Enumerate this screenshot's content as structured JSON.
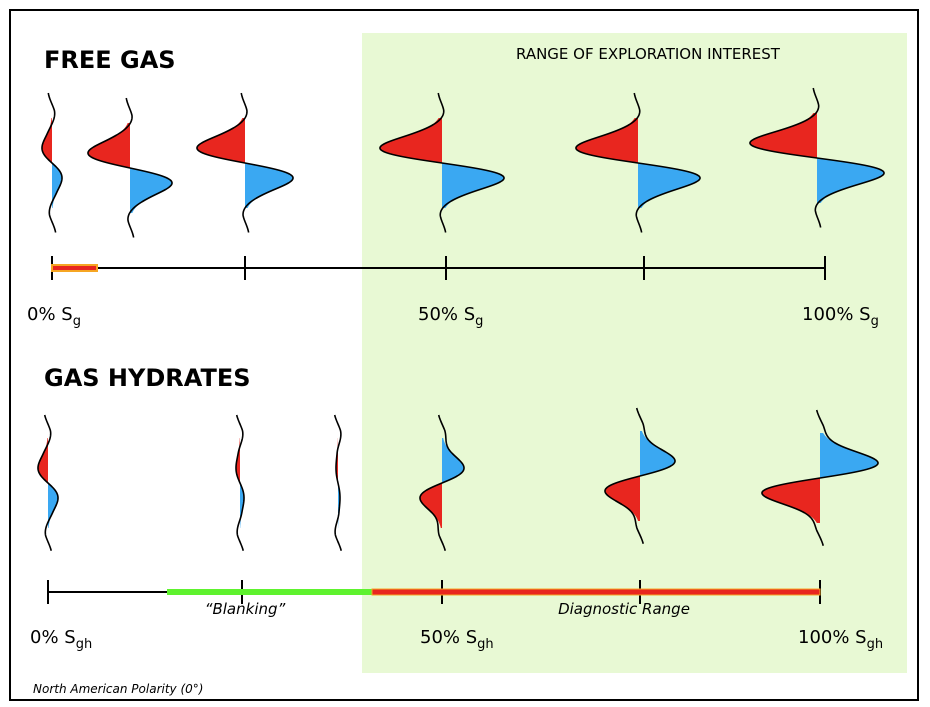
{
  "free_gas": {
    "title": "FREE GAS",
    "axis_labels": [
      {
        "text": "0% S",
        "sub": "g"
      },
      {
        "text": "50% S",
        "sub": "g"
      },
      {
        "text": "100% S",
        "sub": "g"
      }
    ]
  },
  "range_label": "RANGE OF EXPLORATION INTEREST",
  "gas_hydrates": {
    "title": "GAS HYDRATES",
    "axis_labels": [
      {
        "text": "0% S",
        "sub": "gh"
      },
      {
        "text": "50% S",
        "sub": "gh"
      },
      {
        "text": "100% S",
        "sub": "gh"
      }
    ],
    "blanking_label": "“Blanking”",
    "diagnostic_label": "Diagnostic Range"
  },
  "footnote": "North American Polarity (0°)"
}
